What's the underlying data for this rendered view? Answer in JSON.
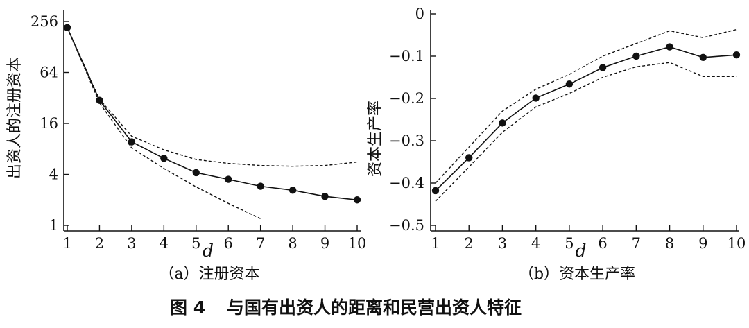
{
  "figure": {
    "caption_number": "图 4",
    "caption_text": "与国有出资人的距离和民营出资人特征"
  },
  "chart_data": [
    {
      "type": "line",
      "subtitle": "（a）注册资本",
      "xlabel": "d",
      "ylabel": "出资人的注册资本",
      "yscale": "log2",
      "x": [
        1,
        2,
        3,
        4,
        5,
        6,
        7,
        8,
        9,
        10
      ],
      "xlim": [
        1,
        10
      ],
      "ylim": [
        1,
        256
      ],
      "yticks": [
        1,
        4,
        16,
        64,
        256
      ],
      "series": [
        {
          "role": "estimate",
          "style": "solid-markers",
          "x": [
            1,
            2,
            3,
            4,
            5,
            6,
            7,
            8,
            9,
            10
          ],
          "values": [
            217,
            30,
            9.7,
            6.2,
            4.2,
            3.5,
            2.9,
            2.6,
            2.2,
            2.0
          ]
        },
        {
          "role": "upper-bound",
          "style": "dashed",
          "x": [
            1,
            2,
            3,
            4,
            5,
            6,
            7,
            8,
            9,
            10
          ],
          "values": [
            217,
            31,
            11.3,
            7.8,
            6.0,
            5.4,
            5.1,
            5.0,
            5.1,
            5.6
          ]
        },
        {
          "role": "lower-bound",
          "style": "dashed",
          "x": [
            1,
            2,
            3,
            4,
            5,
            6,
            7
          ],
          "values": [
            217,
            28,
            8.2,
            4.7,
            2.85,
            1.82,
            1.2
          ]
        }
      ]
    },
    {
      "type": "line",
      "subtitle": "（b）资本生产率",
      "xlabel": "d",
      "ylabel": "资本生产率",
      "yscale": "linear",
      "x": [
        1,
        2,
        3,
        4,
        5,
        6,
        7,
        8,
        9,
        10
      ],
      "xlim": [
        1,
        10
      ],
      "ylim": [
        -0.5,
        0
      ],
      "yticks": [
        -0.5,
        -0.4,
        -0.3,
        -0.2,
        -0.1,
        0
      ],
      "ytick_labels": [
        "−0.5",
        "−0.4",
        "−0.3",
        "−0.2",
        "−0.1",
        "0"
      ],
      "series": [
        {
          "role": "estimate",
          "style": "solid-markers",
          "x": [
            1,
            2,
            3,
            4,
            5,
            6,
            7,
            8,
            9,
            10
          ],
          "values": [
            -0.418,
            -0.34,
            -0.258,
            -0.199,
            -0.166,
            -0.127,
            -0.1,
            -0.078,
            -0.103,
            -0.097
          ]
        },
        {
          "role": "upper-bound",
          "style": "dashed",
          "x": [
            1,
            2,
            3,
            4,
            5,
            6,
            7,
            8,
            9,
            10
          ],
          "values": [
            -0.4,
            -0.315,
            -0.23,
            -0.178,
            -0.143,
            -0.1,
            -0.07,
            -0.04,
            -0.056,
            -0.037
          ]
        },
        {
          "role": "lower-bound",
          "style": "dashed",
          "x": [
            1,
            2,
            3,
            4,
            5,
            6,
            7,
            8,
            9,
            10
          ],
          "values": [
            -0.443,
            -0.362,
            -0.28,
            -0.22,
            -0.188,
            -0.15,
            -0.125,
            -0.115,
            -0.148,
            -0.148
          ]
        }
      ]
    }
  ]
}
